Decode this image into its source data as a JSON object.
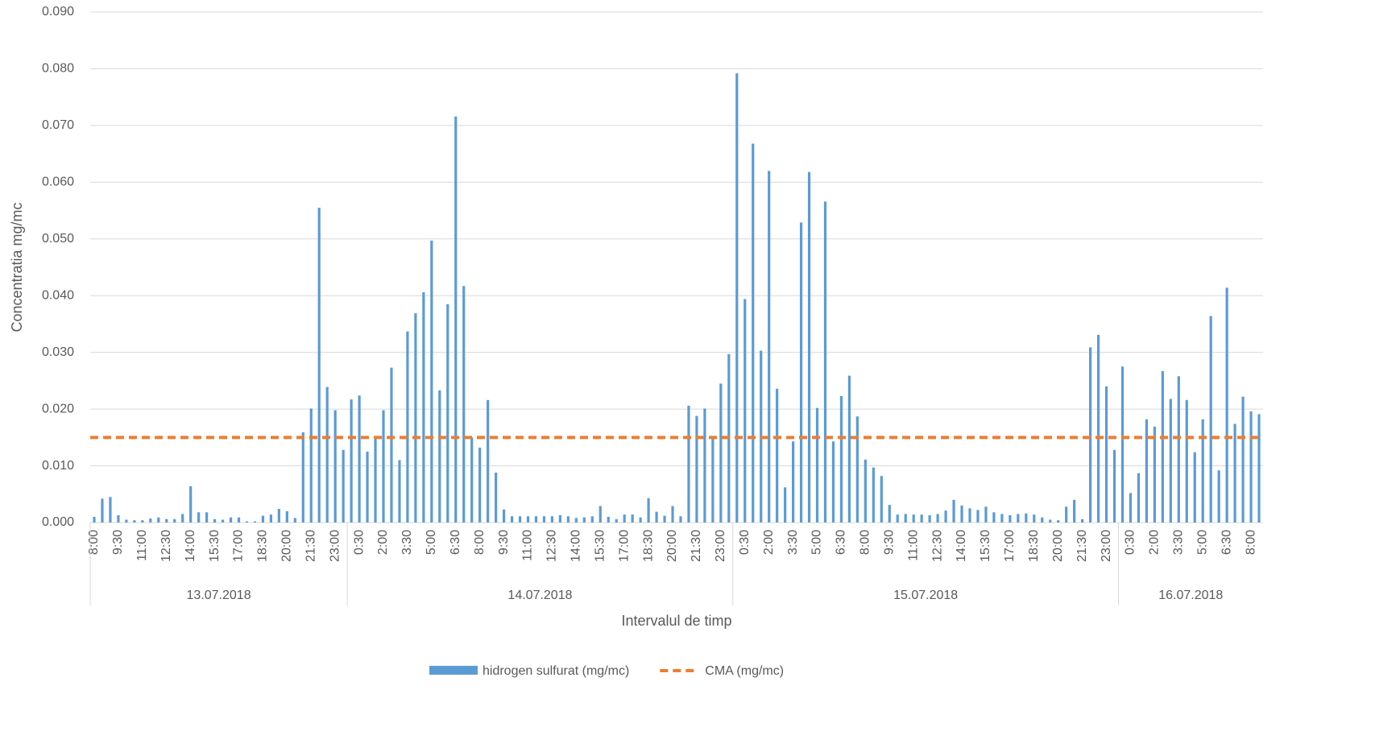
{
  "chart_data": {
    "type": "bar",
    "ylabel": "Concentratia mg/mc",
    "xlabel": "Intervalul de timp",
    "categories": [
      "8:00",
      null,
      null,
      "9:30",
      null,
      null,
      "11:00",
      null,
      null,
      "12:30",
      null,
      null,
      "14:00",
      null,
      null,
      "15:30",
      null,
      null,
      "17:00",
      null,
      null,
      "18:30",
      null,
      null,
      "20:00",
      null,
      null,
      "21:30",
      null,
      null,
      "23:00",
      null,
      null,
      "0:30",
      null,
      null,
      "2:00",
      null,
      null,
      "3:30",
      null,
      null,
      "5:00",
      null,
      null,
      "6:30",
      null,
      null,
      "8:00",
      null,
      null,
      "9:30",
      null,
      null,
      "11:00",
      null,
      null,
      "12:30",
      null,
      null,
      "14:00",
      null,
      null,
      "15:30",
      null,
      null,
      "17:00",
      null,
      null,
      "18:30",
      null,
      null,
      "20:00",
      null,
      null,
      "21:30",
      null,
      null,
      "23:00",
      null,
      null,
      "0:30",
      null,
      null,
      "2:00",
      null,
      null,
      "3:30",
      null,
      null,
      "5:00",
      null,
      null,
      "6:30",
      null,
      null,
      "8:00",
      null,
      null,
      "9:30",
      null,
      null,
      "11:00",
      null,
      null,
      "12:30",
      null,
      null,
      "14:00",
      null,
      null,
      "15:30",
      null,
      null,
      "17:00",
      null,
      null,
      "18:30",
      null,
      null,
      "20:00",
      null,
      null,
      "21:30",
      null,
      null,
      "23:00",
      null,
      null,
      "0:30",
      null,
      null,
      "2:00",
      null,
      null,
      "3:30",
      null,
      null,
      "5:00",
      null,
      null,
      "6:30",
      null,
      null,
      "8:00",
      null
    ],
    "category_groups": [
      {
        "name": "13.07.2018",
        "span": 32
      },
      {
        "name": "14.07.2018",
        "span": 48
      },
      {
        "name": "15.07.2018",
        "span": 48
      },
      {
        "name": "16.07.2018",
        "span": 18
      }
    ],
    "series": [
      {
        "name": "hidrogen sulfurat (mg/mc)",
        "color": "#5b9bd5",
        "values": [
          0.001,
          0.0042,
          0.0045,
          0.0013,
          0.0005,
          0.0004,
          0.0004,
          0.0007,
          0.0009,
          0.0006,
          0.0006,
          0.0015,
          0.0064,
          0.0018,
          0.0018,
          0.0006,
          0.0005,
          0.0009,
          0.0009,
          0.0002,
          0.0002,
          0.0012,
          0.0014,
          0.0024,
          0.002,
          0.0008,
          0.0159,
          0.0201,
          0.0555,
          0.0239,
          0.0198,
          0.0128,
          0.0217,
          0.0224,
          0.0125,
          0.0148,
          0.0198,
          0.0273,
          0.011,
          0.0337,
          0.0369,
          0.0406,
          0.0497,
          0.0233,
          0.0385,
          0.0716,
          0.0417,
          0.015,
          0.0132,
          0.0216,
          0.0088,
          0.0023,
          0.0011,
          0.0011,
          0.0011,
          0.0011,
          0.0011,
          0.0011,
          0.0013,
          0.0011,
          0.0008,
          0.0009,
          0.0011,
          0.0029,
          0.001,
          0.0006,
          0.0014,
          0.0014,
          0.0009,
          0.0043,
          0.0019,
          0.0012,
          0.0029,
          0.0011,
          0.0206,
          0.0188,
          0.0201,
          0.015,
          0.0245,
          0.0297,
          0.0792,
          0.0394,
          0.0668,
          0.0303,
          0.062,
          0.0236,
          0.0062,
          0.0143,
          0.0529,
          0.0618,
          0.0202,
          0.0566,
          0.0143,
          0.0223,
          0.0259,
          0.0187,
          0.0111,
          0.0097,
          0.0082,
          0.0031,
          0.0014,
          0.0015,
          0.0014,
          0.0014,
          0.0013,
          0.0015,
          0.0021,
          0.004,
          0.003,
          0.0025,
          0.0022,
          0.0028,
          0.0018,
          0.0015,
          0.0013,
          0.0015,
          0.0016,
          0.0014,
          0.0009,
          0.0005,
          0.0004,
          0.0028,
          0.004,
          0.0006,
          0.0309,
          0.0331,
          0.024,
          0.0128,
          0.0275,
          0.0052,
          0.0087,
          0.0182,
          0.0169,
          0.0267,
          0.0218,
          0.0258,
          0.0216,
          0.0124,
          0.0182,
          0.0364,
          0.0092,
          0.0414,
          0.0174,
          0.0222,
          0.0196,
          0.0191
        ]
      },
      {
        "name": "CMA (mg/mc)",
        "color": "#ed7d31",
        "style": "dashed",
        "value": 0.015
      }
    ],
    "ylim": [
      0,
      0.09
    ],
    "yticks": [
      {
        "value": 0,
        "label": "0.000"
      },
      {
        "value": 0.01,
        "label": "0.010"
      },
      {
        "value": 0.02,
        "label": "0.020"
      },
      {
        "value": 0.03,
        "label": "0.030"
      },
      {
        "value": 0.04,
        "label": "0.040"
      },
      {
        "value": 0.05,
        "label": "0.050"
      },
      {
        "value": 0.06,
        "label": "0.060"
      },
      {
        "value": 0.07,
        "label": "0.070"
      },
      {
        "value": 0.08,
        "label": "0.080"
      },
      {
        "value": 0.09,
        "label": "0.090"
      }
    ],
    "grid": true,
    "legend": "bottom"
  }
}
